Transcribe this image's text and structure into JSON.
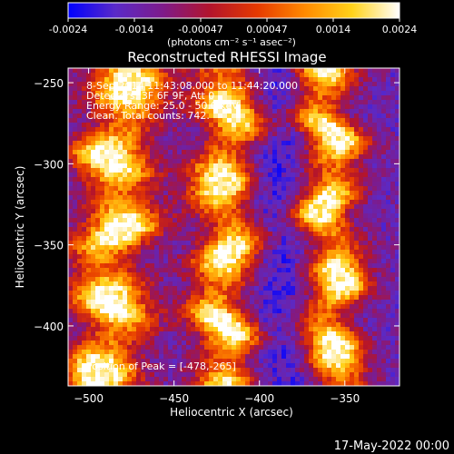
{
  "colorbar": {
    "ticks": [
      "-0.0024",
      "-0.0014",
      "-0.00047",
      "0.00047",
      "0.0014",
      "0.0024"
    ],
    "unit_label": "(photons cm⁻² s⁻¹ asec⁻²)",
    "stops": [
      "#0000ff",
      "#5a2ac8",
      "#7e1b8a",
      "#b3142c",
      "#e63a00",
      "#ff8a00",
      "#ffd21a",
      "#ffffff"
    ]
  },
  "title": "Reconstructed RHESSI Image",
  "annotations": {
    "time": "8-Sep-2014 11:43:08.000 to 11:44:20.000",
    "detectors": "Detectors: 3F 6F 9F, Att 0",
    "energy": "Energy Range: 25.0 - 50.0 keV",
    "clean": "Clean. Total counts: 742.",
    "peak": "Position of Peak = [-478,-265]"
  },
  "footer": {
    "date": "17-May-2022 00:00"
  },
  "chart_data": {
    "type": "heatmap",
    "title": "Reconstructed RHESSI Image",
    "xlabel": "Heliocentric X (arcsec)",
    "ylabel": "Heliocentric Y (arcsec)",
    "xlim": [
      -512,
      -318
    ],
    "ylim": [
      -437,
      -241
    ],
    "xticks": [
      -500,
      -450,
      -400,
      -350
    ],
    "yticks": [
      -400,
      -350,
      -300,
      -250
    ],
    "colorbar_range": [
      -0.0024,
      0.0024
    ],
    "peak_position": [
      -478,
      -265
    ],
    "bright_bands_x_centers": [
      -485,
      -420,
      -358
    ],
    "bright_bands_x_widths": [
      24,
      20,
      18
    ],
    "bright_bands_slopes_arcsec_per_arcsec": [
      0.06,
      0.02,
      -0.03
    ],
    "background_min_x": -390,
    "grid": false
  }
}
